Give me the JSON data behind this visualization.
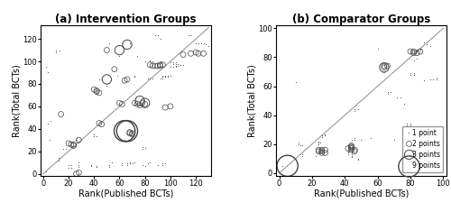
{
  "title_a": "(a) Intervention Groups",
  "title_b": "(b) Comparator Groups",
  "xlabel": "Rank(Published BCTs)",
  "ylabel": "Rank(Total BCTs)",
  "panel_a": {
    "xlim": [
      -2,
      132
    ],
    "ylim": [
      -2,
      132
    ],
    "xticks": [
      0,
      20,
      40,
      60,
      80,
      100,
      120
    ],
    "yticks": [
      0,
      20,
      40,
      60,
      80,
      100,
      120
    ],
    "diag": [
      0,
      130
    ],
    "points_1": [
      [
        2,
        2
      ],
      [
        2,
        95
      ],
      [
        4,
        45
      ],
      [
        4,
        90
      ],
      [
        5,
        30
      ],
      [
        6,
        47
      ],
      [
        10,
        110
      ],
      [
        10,
        108
      ],
      [
        12,
        14
      ],
      [
        12,
        12
      ],
      [
        13,
        110
      ],
      [
        16,
        22
      ],
      [
        18,
        22
      ],
      [
        20,
        5
      ],
      [
        20,
        8
      ],
      [
        22,
        5
      ],
      [
        22,
        8
      ],
      [
        26,
        30
      ],
      [
        26,
        32
      ],
      [
        28,
        28
      ],
      [
        28,
        10
      ],
      [
        28,
        8
      ],
      [
        28,
        6
      ],
      [
        38,
        8
      ],
      [
        38,
        7
      ],
      [
        40,
        33
      ],
      [
        40,
        35
      ],
      [
        42,
        33
      ],
      [
        42,
        6
      ],
      [
        42,
        7
      ],
      [
        44,
        84
      ],
      [
        46,
        84
      ],
      [
        50,
        78
      ],
      [
        50,
        80
      ],
      [
        52,
        6
      ],
      [
        52,
        8
      ],
      [
        52,
        116
      ],
      [
        54,
        10
      ],
      [
        58,
        87
      ],
      [
        60,
        105
      ],
      [
        62,
        8
      ],
      [
        62,
        9
      ],
      [
        62,
        116
      ],
      [
        64,
        30
      ],
      [
        66,
        8
      ],
      [
        66,
        9
      ],
      [
        66,
        35
      ],
      [
        68,
        9
      ],
      [
        68,
        10
      ],
      [
        68,
        116
      ],
      [
        70,
        9
      ],
      [
        70,
        36
      ],
      [
        72,
        10
      ],
      [
        72,
        86
      ],
      [
        72,
        87
      ],
      [
        74,
        105
      ],
      [
        78,
        8
      ],
      [
        78,
        22
      ],
      [
        78,
        24
      ],
      [
        80,
        23
      ],
      [
        80,
        7
      ],
      [
        80,
        100
      ],
      [
        82,
        9
      ],
      [
        82,
        85
      ],
      [
        84,
        10
      ],
      [
        84,
        85
      ],
      [
        84,
        100
      ],
      [
        84,
        101
      ],
      [
        86,
        85
      ],
      [
        86,
        100
      ],
      [
        88,
        123
      ],
      [
        90,
        123
      ],
      [
        90,
        8
      ],
      [
        92,
        85
      ],
      [
        92,
        100
      ],
      [
        92,
        120
      ],
      [
        94,
        8
      ],
      [
        94,
        9
      ],
      [
        94,
        85
      ],
      [
        94,
        86
      ],
      [
        94,
        87
      ],
      [
        96,
        9
      ],
      [
        96,
        86
      ],
      [
        96,
        87
      ],
      [
        98,
        86
      ],
      [
        98,
        87
      ],
      [
        100,
        87
      ],
      [
        100,
        95
      ],
      [
        100,
        99
      ],
      [
        102,
        98
      ],
      [
        102,
        95
      ],
      [
        102,
        99
      ],
      [
        104,
        95
      ],
      [
        104,
        96
      ],
      [
        104,
        99
      ],
      [
        104,
        98
      ],
      [
        106,
        96
      ],
      [
        106,
        98
      ],
      [
        108,
        97
      ],
      [
        108,
        97
      ],
      [
        110,
        97
      ],
      [
        114,
        123
      ],
      [
        116,
        123
      ],
      [
        120,
        116
      ],
      [
        122,
        116
      ],
      [
        124,
        116
      ],
      [
        126,
        116
      ],
      [
        128,
        115
      ],
      [
        130,
        114
      ]
    ],
    "points_2": [
      [
        14,
        53
      ],
      [
        20,
        27
      ],
      [
        22,
        26
      ],
      [
        24,
        25
      ],
      [
        24,
        26
      ],
      [
        26,
        0
      ],
      [
        28,
        1
      ],
      [
        28,
        30
      ],
      [
        40,
        75
      ],
      [
        42,
        74
      ],
      [
        42,
        73
      ],
      [
        44,
        72
      ],
      [
        44,
        45
      ],
      [
        46,
        44
      ],
      [
        50,
        110
      ],
      [
        56,
        93
      ],
      [
        60,
        63
      ],
      [
        62,
        62
      ],
      [
        64,
        83
      ],
      [
        66,
        84
      ],
      [
        68,
        36
      ],
      [
        68,
        37
      ],
      [
        70,
        36
      ],
      [
        70,
        35
      ],
      [
        72,
        63
      ],
      [
        74,
        62
      ],
      [
        76,
        61
      ],
      [
        78,
        63
      ],
      [
        80,
        62
      ],
      [
        84,
        97
      ],
      [
        86,
        96
      ],
      [
        88,
        96
      ],
      [
        90,
        96
      ],
      [
        92,
        96
      ],
      [
        92,
        97
      ],
      [
        94,
        97
      ],
      [
        96,
        59
      ],
      [
        100,
        60
      ],
      [
        110,
        106
      ],
      [
        116,
        107
      ],
      [
        120,
        108
      ],
      [
        122,
        107
      ],
      [
        126,
        107
      ]
    ],
    "points_3": [
      [
        50,
        84
      ],
      [
        60,
        110
      ],
      [
        66,
        115
      ],
      [
        76,
        65
      ],
      [
        80,
        63
      ]
    ],
    "points_9": [
      [
        64,
        38
      ],
      [
        66,
        38
      ]
    ]
  },
  "panel_b": {
    "xlim": [
      -2,
      102
    ],
    "ylim": [
      -2,
      102
    ],
    "xticks": [
      0,
      20,
      40,
      60,
      80,
      100
    ],
    "yticks": [
      0,
      20,
      40,
      60,
      80,
      100
    ],
    "diag": [
      0,
      100
    ],
    "points_1": [
      [
        2,
        5
      ],
      [
        10,
        63
      ],
      [
        12,
        20
      ],
      [
        12,
        21
      ],
      [
        13,
        19
      ],
      [
        14,
        19
      ],
      [
        14,
        13
      ],
      [
        14,
        12
      ],
      [
        22,
        12
      ],
      [
        24,
        20
      ],
      [
        24,
        21
      ],
      [
        24,
        22
      ],
      [
        25,
        21
      ],
      [
        26,
        25
      ],
      [
        26,
        26
      ],
      [
        28,
        27
      ],
      [
        28,
        26
      ],
      [
        42,
        13
      ],
      [
        42,
        14
      ],
      [
        42,
        15
      ],
      [
        44,
        13
      ],
      [
        44,
        14
      ],
      [
        44,
        15
      ],
      [
        44,
        11
      ],
      [
        44,
        12
      ],
      [
        44,
        13
      ],
      [
        44,
        23
      ],
      [
        46,
        23
      ],
      [
        46,
        24
      ],
      [
        46,
        43
      ],
      [
        46,
        44
      ],
      [
        48,
        44
      ],
      [
        48,
        9
      ],
      [
        48,
        10
      ],
      [
        50,
        23
      ],
      [
        56,
        24
      ],
      [
        60,
        86
      ],
      [
        63,
        70
      ],
      [
        64,
        70
      ],
      [
        66,
        55
      ],
      [
        66,
        56
      ],
      [
        66,
        56
      ],
      [
        68,
        56
      ],
      [
        70,
        23
      ],
      [
        72,
        52
      ],
      [
        74,
        52
      ],
      [
        76,
        48
      ],
      [
        78,
        33
      ],
      [
        78,
        34
      ],
      [
        80,
        34
      ],
      [
        80,
        33
      ],
      [
        80,
        68
      ],
      [
        80,
        69
      ],
      [
        82,
        68
      ],
      [
        82,
        69
      ],
      [
        82,
        68
      ],
      [
        82,
        78
      ],
      [
        84,
        79
      ],
      [
        84,
        84
      ],
      [
        84,
        85
      ],
      [
        84,
        84
      ],
      [
        84,
        85
      ],
      [
        86,
        85
      ],
      [
        86,
        86
      ],
      [
        86,
        86
      ],
      [
        88,
        64
      ],
      [
        88,
        90
      ],
      [
        90,
        89
      ],
      [
        92,
        88
      ],
      [
        92,
        65
      ],
      [
        94,
        65
      ],
      [
        96,
        65
      ],
      [
        96,
        66
      ]
    ],
    "points_2": [
      [
        24,
        15
      ],
      [
        24,
        16
      ],
      [
        26,
        15
      ],
      [
        26,
        16
      ],
      [
        26,
        14
      ],
      [
        28,
        16
      ],
      [
        28,
        14
      ],
      [
        42,
        17
      ],
      [
        44,
        17
      ],
      [
        44,
        18
      ],
      [
        44,
        19
      ],
      [
        46,
        16
      ],
      [
        46,
        15
      ],
      [
        44,
        16
      ],
      [
        44,
        18
      ],
      [
        64,
        73
      ],
      [
        64,
        74
      ],
      [
        66,
        74
      ],
      [
        80,
        84
      ],
      [
        82,
        84
      ],
      [
        82,
        83
      ],
      [
        84,
        83
      ],
      [
        86,
        84
      ]
    ],
    "points_3": [
      [
        64,
        73
      ]
    ],
    "points_9": [
      [
        5,
        5
      ]
    ]
  },
  "legend": {
    "sizes": [
      1,
      2,
      3,
      9
    ],
    "labels": [
      "1 point",
      "2 points",
      "3 points",
      "9 points"
    ]
  },
  "line_color": "#999999",
  "marker_color": "#444444",
  "title_fontsize": 8.5,
  "label_fontsize": 7,
  "tick_fontsize": 6
}
